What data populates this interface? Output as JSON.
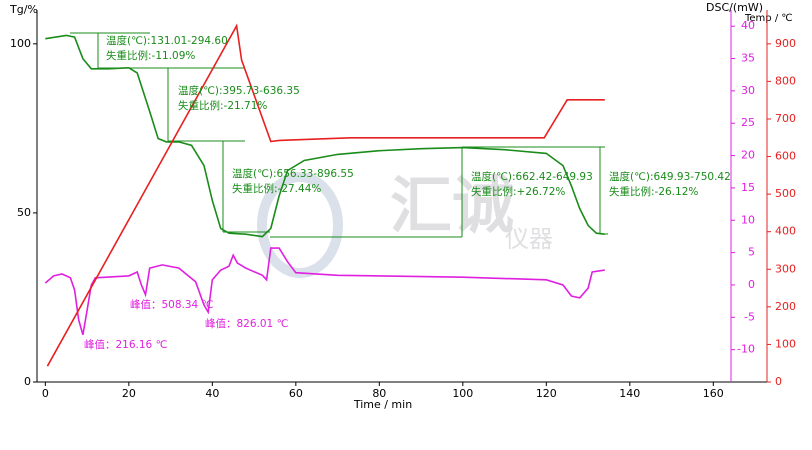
{
  "chart_data": {
    "type": "line",
    "ylabel": "Tg/%",
    "y2label": "DSC/(mW)",
    "y3label": "Temp / ℃",
    "xlabel": "Time / min",
    "xlim": [
      -2,
      164
    ],
    "xticks": [
      0,
      20,
      40,
      60,
      80,
      100,
      120,
      140,
      160
    ],
    "ylim": [
      0,
      110
    ],
    "yticks": [
      0,
      50,
      100
    ],
    "y2lim": [
      -15,
      42.5
    ],
    "y2ticks": [
      -10,
      -5,
      0,
      5,
      10,
      15,
      20,
      25,
      30,
      35,
      40
    ],
    "y3lim": [
      0,
      990
    ],
    "y3ticks": [
      0,
      100,
      200,
      300,
      400,
      500,
      600,
      700,
      800,
      900
    ],
    "series": [
      {
        "name": "Tg",
        "color": "#1a8c1a",
        "axis": "y",
        "x": [
          0,
          5,
          7,
          9,
          11,
          15,
          20,
          22,
          25,
          27,
          29,
          32,
          35,
          38,
          40,
          42,
          44,
          48,
          52,
          54,
          56,
          58,
          62,
          70,
          80,
          90,
          100,
          110,
          120,
          124,
          126,
          128,
          130,
          132,
          134
        ],
        "values": [
          101.5,
          102.5,
          102,
          95.6,
          92.6,
          92.6,
          92.9,
          91.4,
          80,
          72,
          71,
          71,
          70,
          64,
          53.7,
          45.4,
          44,
          43.7,
          43,
          45.4,
          55,
          62.5,
          65.5,
          67.3,
          68.4,
          69,
          69.3,
          68.7,
          67.6,
          64,
          58,
          51.3,
          46.3,
          44,
          43.7
        ]
      },
      {
        "name": "DSC",
        "color": "#e020e0",
        "axis": "y2",
        "x": [
          0,
          2,
          4,
          6,
          7,
          8,
          9,
          10,
          11,
          12,
          20,
          22,
          23,
          24,
          25,
          28,
          32,
          36,
          38,
          39,
          40,
          42,
          44,
          45,
          46,
          48,
          52,
          53,
          54,
          56,
          58,
          60,
          70,
          100,
          120,
          124,
          126,
          128,
          130,
          131,
          134
        ],
        "values": [
          0.3,
          1.4,
          1.7,
          1.1,
          -0.8,
          -5.4,
          -7.7,
          -3.9,
          0,
          1.1,
          1.4,
          2,
          0,
          -1.5,
          2.6,
          3.1,
          2.6,
          0.5,
          -3.1,
          -4.2,
          0.8,
          2.3,
          2.9,
          4.6,
          3.4,
          2.6,
          1.5,
          0.8,
          5.7,
          5.7,
          3.6,
          1.9,
          1.5,
          1.2,
          0.8,
          0,
          -1.7,
          -2,
          -0.5,
          2,
          2.3
        ]
      },
      {
        "name": "Temp",
        "color": "#e82020",
        "axis": "y3",
        "x": [
          0.5,
          45.8,
          47,
          54,
          56,
          73,
          119.5,
          125,
          134
        ],
        "values": [
          42,
          948,
          857,
          640,
          643,
          650,
          650,
          751,
          751
        ]
      }
    ],
    "annotations": [
      "温度(℃):131.01-294.60",
      "失重比例:-11.09%",
      "温度(℃):395.73-636.35",
      "失重比例:-21.71%",
      "温度(℃):656.33-896.55",
      "失重比例:-27.44%",
      "温度(℃):662.42-649.93",
      "失重比例:+26.72%",
      "温度(℃):649.93-750.42",
      "失重比例:-26.12%",
      "峰值：216.16 ℃",
      "峰值：508.34 ℃",
      "峰值：826.01 ℃"
    ],
    "watermark": [
      "汇诚",
      "仪器"
    ]
  }
}
